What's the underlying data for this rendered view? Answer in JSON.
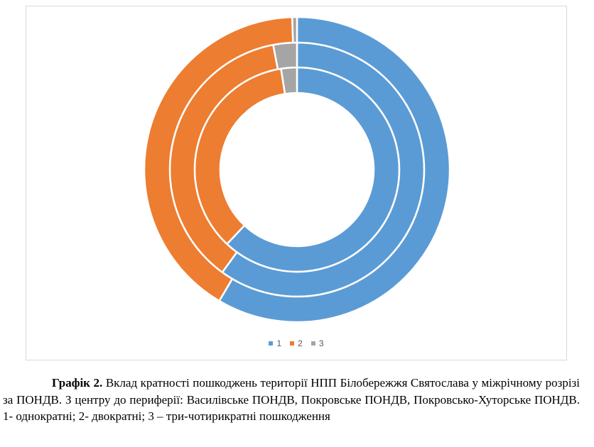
{
  "chart_data": {
    "type": "pie",
    "variant": "doughnut",
    "title": "",
    "legend_position": "bottom",
    "categories": [
      "1",
      "2",
      "3"
    ],
    "colors": [
      "#5b9bd5",
      "#ed7d31",
      "#a5a5a5"
    ],
    "series": [
      {
        "values": [
          62.0,
          35.5,
          2.5
        ]
      },
      {
        "values": [
          60.0,
          37.0,
          3.0
        ]
      },
      {
        "values": [
          58.5,
          41.0,
          0.5
        ]
      }
    ]
  },
  "caption": {
    "label": "Графік 2.",
    "text": "Вклад кратності пошкоджень території НПП Білобережжя Святослава у міжрічному розрізі за ПОНДВ. З центру до периферії: Василівське ПОНДВ, Покровське ПОНДВ, Покровсько-Хуторське ПОНДВ. 1- однократні; 2- двократні; 3 – три-чотирикратні пошкодження"
  }
}
